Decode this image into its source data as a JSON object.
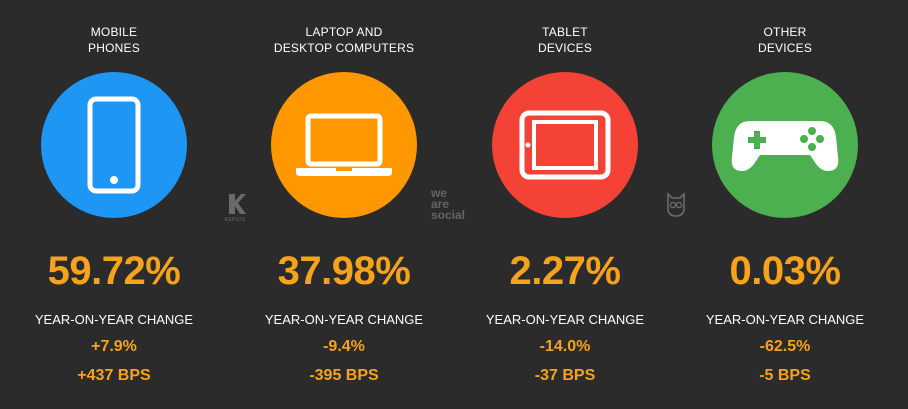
{
  "categories": [
    {
      "title_line1": "MOBILE",
      "title_line2": "PHONES",
      "icon": "mobile-phone-icon",
      "circle_color": "#1e96f3",
      "share": "59.72%",
      "yoy_label": "YEAR-ON-YEAR CHANGE",
      "yoy_pct": "+7.9%",
      "yoy_bps": "+437 BPS"
    },
    {
      "title_line1": "LAPTOP AND",
      "title_line2": "DESKTOP COMPUTERS",
      "icon": "laptop-icon",
      "circle_color": "#ff9800",
      "share": "37.98%",
      "yoy_label": "YEAR-ON-YEAR CHANGE",
      "yoy_pct": "-9.4%",
      "yoy_bps": "-395 BPS"
    },
    {
      "title_line1": "TABLET",
      "title_line2": "DEVICES",
      "icon": "tablet-icon",
      "circle_color": "#f44336",
      "share": "2.27%",
      "yoy_label": "YEAR-ON-YEAR CHANGE",
      "yoy_pct": "-14.0%",
      "yoy_bps": "-37 BPS"
    },
    {
      "title_line1": "OTHER",
      "title_line2": "DEVICES",
      "icon": "game-controller-icon",
      "circle_color": "#4caf50",
      "share": "0.03%",
      "yoy_label": "YEAR-ON-YEAR CHANGE",
      "yoy_pct": "-62.5%",
      "yoy_bps": "-5 BPS"
    }
  ],
  "watermarks": {
    "kepios": "KEPIOS",
    "wearesocial_line1": "we",
    "wearesocial_line2": "are",
    "wearesocial_line3": "social"
  },
  "colors": {
    "background": "#2b2b2b",
    "accent": "#f7a21b",
    "text": "#ffffff"
  }
}
